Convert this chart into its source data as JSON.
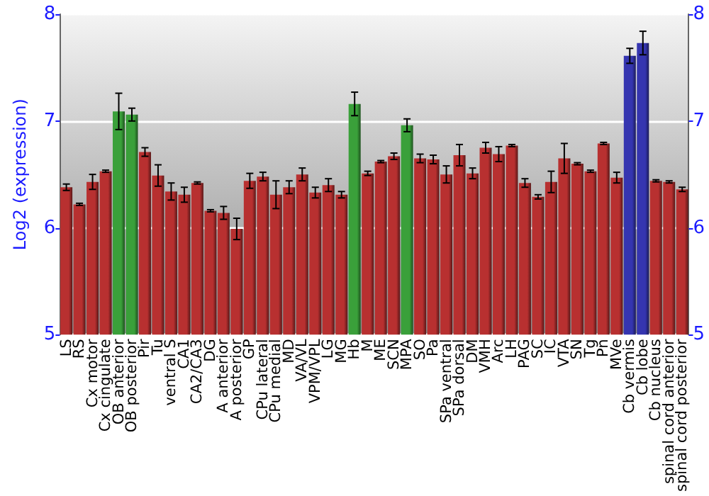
{
  "chart_data": {
    "type": "bar",
    "ylabel": "Log2 (expression)",
    "categories": [
      "LS",
      "RS",
      "Cx motor",
      "Cx cingulate",
      "OB anterior",
      "OB posterior",
      "Pir",
      "Tu",
      "ventral S",
      "CA1",
      "CA2/CA3",
      "DG",
      "A anterior",
      "A posterior",
      "GP",
      "CPu lateral",
      "CPu medial",
      "MD",
      "VA/VL",
      "VPM/VPL",
      "LG",
      "MG",
      "Hb",
      "M",
      "ME",
      "SCN",
      "MPA",
      "SO",
      "Pa",
      "SPa ventral",
      "SPa dorsal",
      "DM",
      "VMH",
      "Arc",
      "LH",
      "PAG",
      "SC",
      "IC",
      "VTA",
      "SN",
      "Tg",
      "Pn",
      "MVe",
      "Cb vermis",
      "Cb lobe",
      "Cb nucleus",
      "spinal cord anterior",
      "spinal cord posterior"
    ],
    "values": [
      6.38,
      6.22,
      6.43,
      6.53,
      7.09,
      7.06,
      6.71,
      6.49,
      6.34,
      6.31,
      6.42,
      6.16,
      6.14,
      5.99,
      6.44,
      6.48,
      6.31,
      6.38,
      6.5,
      6.33,
      6.4,
      6.31,
      7.16,
      6.51,
      6.62,
      6.67,
      6.96,
      6.65,
      6.64,
      6.5,
      6.68,
      6.51,
      6.75,
      6.69,
      6.77,
      6.42,
      6.29,
      6.43,
      6.65,
      6.6,
      6.53,
      6.79,
      6.47,
      7.61,
      7.73,
      6.44,
      6.43,
      6.36
    ],
    "errors": [
      0.03,
      0.01,
      0.07,
      0.01,
      0.17,
      0.06,
      0.04,
      0.1,
      0.08,
      0.07,
      0.01,
      0.01,
      0.06,
      0.1,
      0.07,
      0.04,
      0.13,
      0.06,
      0.06,
      0.05,
      0.06,
      0.03,
      0.11,
      0.02,
      0.01,
      0.03,
      0.06,
      0.04,
      0.04,
      0.08,
      0.1,
      0.05,
      0.05,
      0.07,
      0.01,
      0.04,
      0.02,
      0.1,
      0.14,
      0.01,
      0.01,
      0.01,
      0.05,
      0.07,
      0.11,
      0.01,
      0.01,
      0.02
    ],
    "colors": [
      "#b83030",
      "#b83030",
      "#b83030",
      "#b83030",
      "#3aa03a",
      "#3aa03a",
      "#b83030",
      "#b83030",
      "#b83030",
      "#b83030",
      "#b83030",
      "#b83030",
      "#b83030",
      "#b83030",
      "#b83030",
      "#b83030",
      "#b83030",
      "#b83030",
      "#b83030",
      "#b83030",
      "#b83030",
      "#b83030",
      "#3aa03a",
      "#b83030",
      "#b83030",
      "#b83030",
      "#3aa03a",
      "#b83030",
      "#b83030",
      "#b83030",
      "#b83030",
      "#b83030",
      "#b83030",
      "#b83030",
      "#b83030",
      "#b83030",
      "#b83030",
      "#b83030",
      "#b83030",
      "#b83030",
      "#b83030",
      "#b83030",
      "#b83030",
      "#3535b0",
      "#3535b0",
      "#b83030",
      "#b83030",
      "#b83030"
    ],
    "ylim": [
      5,
      8
    ],
    "yticks": [
      5,
      6,
      7,
      8
    ],
    "y2lim": [
      5,
      8
    ],
    "y2ticks": [
      5,
      6,
      7,
      8
    ],
    "grid": "y"
  }
}
